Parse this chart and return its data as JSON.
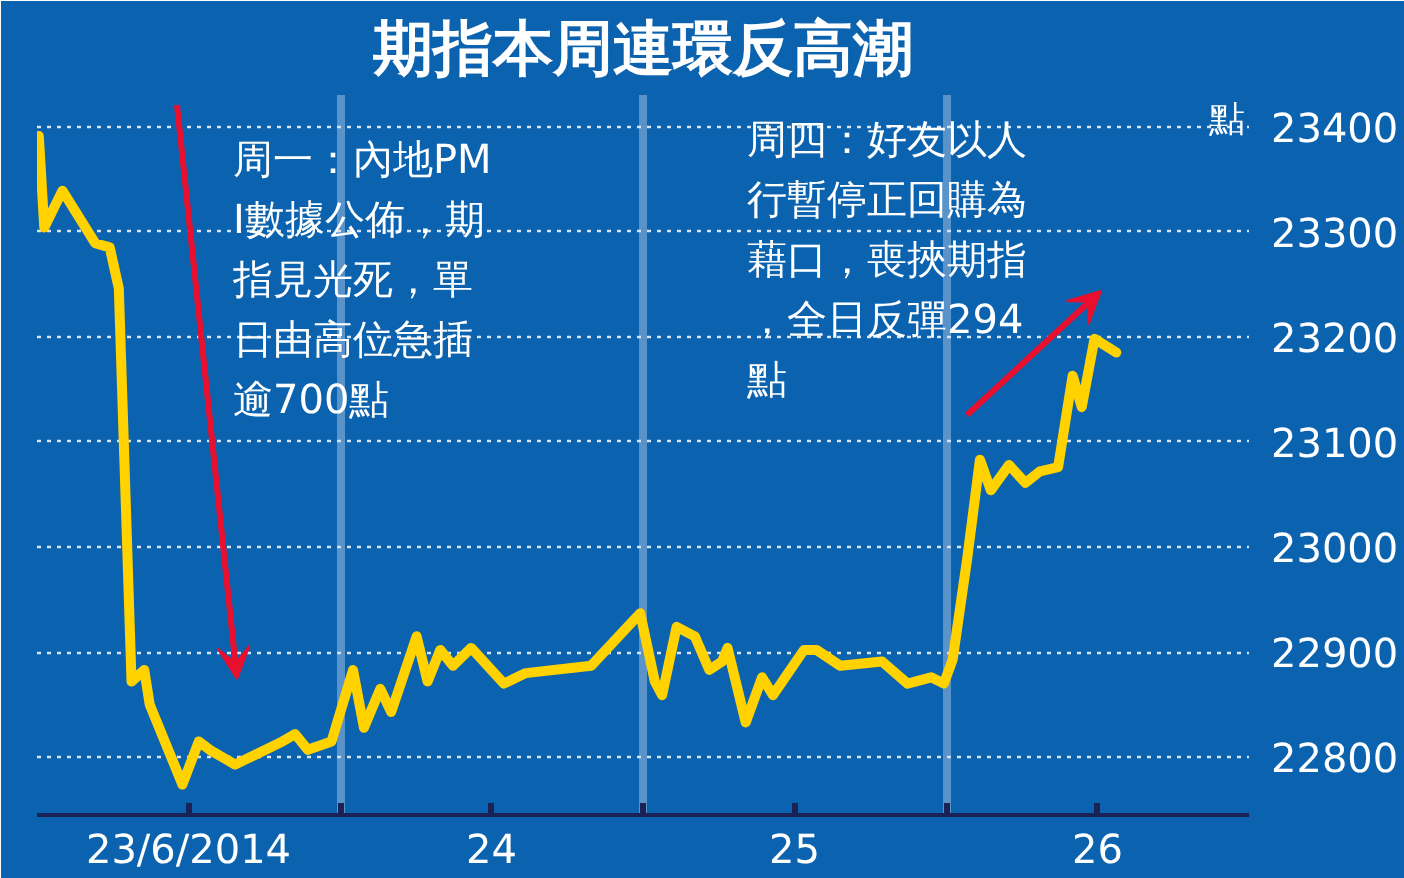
{
  "chart_data": {
    "type": "line",
    "title": "期指本周連環反高潮",
    "ylabel": "點",
    "x": [
      22.506,
      22.524,
      22.584,
      22.692,
      22.74,
      22.77,
      22.812,
      22.854,
      22.872,
      22.98,
      23.034,
      23.07,
      23.154,
      23.31,
      23.352,
      23.394,
      23.472,
      23.543,
      23.579,
      23.633,
      23.669,
      23.753,
      23.789,
      23.831,
      23.873,
      23.933,
      24.041,
      24.113,
      24.329,
      24.491,
      24.539,
      24.563,
      24.611,
      24.671,
      24.719,
      24.761,
      24.779,
      24.839,
      24.893,
      24.929,
      25.031,
      25.073,
      25.151,
      25.289,
      25.373,
      25.451,
      25.493,
      25.522,
      25.57,
      25.612,
      25.648,
      25.708,
      25.762,
      25.81,
      25.87,
      25.918,
      25.948,
      25.99,
      26.062
    ],
    "series": [
      {
        "color": "#ffd200",
        "values": [
          23391,
          23304,
          23339,
          23289,
          23285,
          23246,
          22872,
          22883,
          22850,
          22774,
          22815,
          22807,
          22793,
          22815,
          22822,
          22807,
          22815,
          22883,
          22828,
          22865,
          22843,
          22915,
          22872,
          22902,
          22887,
          22904,
          22870,
          22880,
          22887,
          22937,
          22872,
          22859,
          22924,
          22915,
          22883,
          22891,
          22904,
          22833,
          22876,
          22859,
          22902,
          22902,
          22887,
          22891,
          22870,
          22876,
          22870,
          22893,
          22989,
          23083,
          23054,
          23078,
          23061,
          23072,
          23076,
          23163,
          23133,
          23198,
          23185
        ]
      }
    ],
    "xlim": [
      22.5,
      26.5
    ],
    "xticks": [
      {
        "value": 23,
        "label": "23/6/2014"
      },
      {
        "value": 23.5,
        "label": null
      },
      24,
      {
        "value": 24.5,
        "label": null
      },
      25,
      {
        "value": 25.5,
        "label": null
      },
      26
    ],
    "ylim": [
      22745,
      23430
    ],
    "yticks": [
      22800,
      22900,
      23000,
      23100,
      23200,
      23300,
      23400
    ],
    "grid": true,
    "marker": "none",
    "line_style": "solid",
    "annotations": [
      "周一：內地PMI數據公佈，期指見光死，單日由高位急插逾700點",
      "周四：好友以人行暫停正回購為藉口，喪挾期指，全日反彈294點"
    ]
  }
}
